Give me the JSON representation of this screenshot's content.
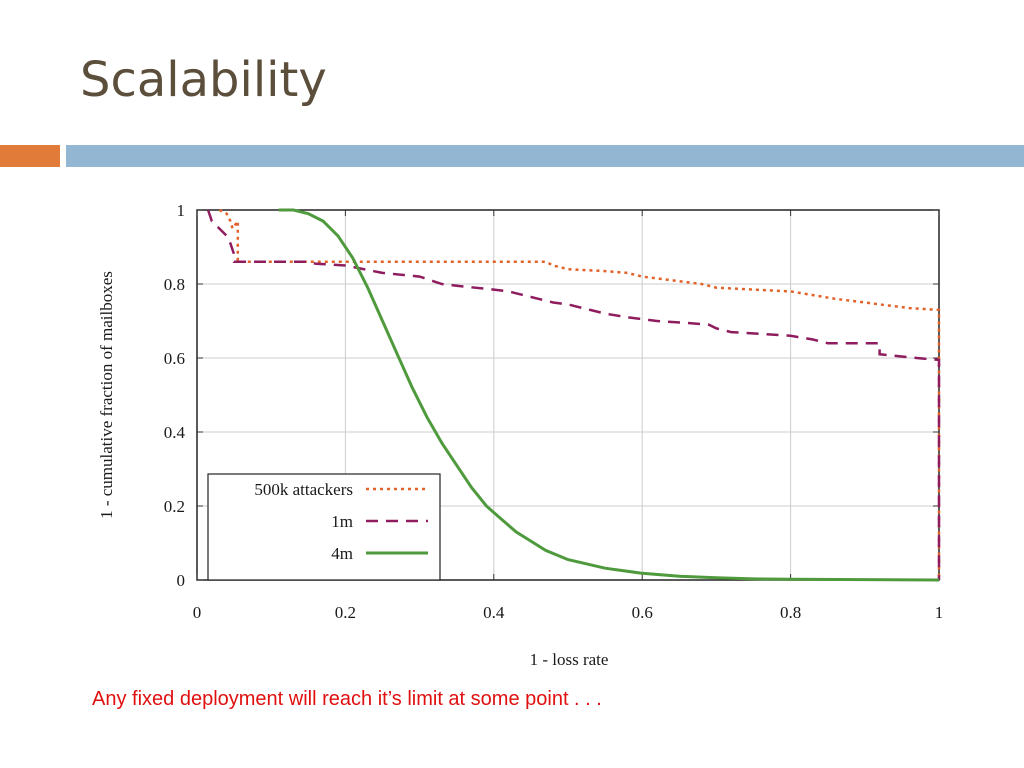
{
  "slide": {
    "title": "Scalability",
    "caption": "Any fixed deployment will reach it’s limit at some point . . .",
    "accent_left": "#e07b39",
    "accent_right": "#93b6d2",
    "title_color": "#5b4e3b",
    "caption_color": "#e01010"
  },
  "chart_data": {
    "type": "line",
    "xlabel": "1 - loss rate",
    "ylabel": "1 - cumulative fraction of mailboxes",
    "xlim": [
      0,
      1
    ],
    "ylim": [
      0,
      1
    ],
    "xticks": [
      "0",
      "0.2",
      "0.4",
      "0.6",
      "0.8",
      "1"
    ],
    "yticks": [
      "0",
      "0.2",
      "0.4",
      "0.6",
      "0.8",
      "1"
    ],
    "grid": true,
    "legend_position": "bottom-left",
    "series": [
      {
        "name": "500k attackers",
        "color": "#e2622a",
        "style": "dotted",
        "points": [
          [
            0.03,
            1.0
          ],
          [
            0.04,
            0.99
          ],
          [
            0.045,
            0.97
          ],
          [
            0.048,
            0.95
          ],
          [
            0.055,
            0.97
          ],
          [
            0.055,
            0.86
          ],
          [
            0.2,
            0.86
          ],
          [
            0.47,
            0.86
          ],
          [
            0.48,
            0.85
          ],
          [
            0.5,
            0.84
          ],
          [
            0.55,
            0.835
          ],
          [
            0.58,
            0.83
          ],
          [
            0.6,
            0.82
          ],
          [
            0.64,
            0.81
          ],
          [
            0.66,
            0.805
          ],
          [
            0.68,
            0.8
          ],
          [
            0.7,
            0.79
          ],
          [
            0.75,
            0.785
          ],
          [
            0.8,
            0.78
          ],
          [
            0.83,
            0.77
          ],
          [
            0.86,
            0.76
          ],
          [
            0.9,
            0.75
          ],
          [
            0.92,
            0.745
          ],
          [
            0.96,
            0.735
          ],
          [
            1.0,
            0.73
          ],
          [
            1.0,
            0.0
          ]
        ]
      },
      {
        "name": "1m",
        "color": "#8e1c5e",
        "style": "dashed",
        "points": [
          [
            0.015,
            1.0
          ],
          [
            0.02,
            0.97
          ],
          [
            0.03,
            0.95
          ],
          [
            0.04,
            0.93
          ],
          [
            0.045,
            0.91
          ],
          [
            0.05,
            0.88
          ],
          [
            0.05,
            0.86
          ],
          [
            0.15,
            0.86
          ],
          [
            0.16,
            0.855
          ],
          [
            0.2,
            0.85
          ],
          [
            0.25,
            0.83
          ],
          [
            0.3,
            0.82
          ],
          [
            0.33,
            0.8
          ],
          [
            0.35,
            0.795
          ],
          [
            0.4,
            0.785
          ],
          [
            0.42,
            0.78
          ],
          [
            0.44,
            0.77
          ],
          [
            0.46,
            0.76
          ],
          [
            0.48,
            0.75
          ],
          [
            0.5,
            0.745
          ],
          [
            0.52,
            0.735
          ],
          [
            0.55,
            0.72
          ],
          [
            0.58,
            0.71
          ],
          [
            0.62,
            0.7
          ],
          [
            0.66,
            0.695
          ],
          [
            0.69,
            0.69
          ],
          [
            0.7,
            0.68
          ],
          [
            0.72,
            0.67
          ],
          [
            0.76,
            0.665
          ],
          [
            0.8,
            0.66
          ],
          [
            0.83,
            0.65
          ],
          [
            0.85,
            0.64
          ],
          [
            0.92,
            0.64
          ],
          [
            0.92,
            0.61
          ],
          [
            0.97,
            0.6
          ],
          [
            1.0,
            0.595
          ],
          [
            1.0,
            0.0
          ]
        ]
      },
      {
        "name": "4m",
        "color": "#4e9a3c",
        "style": "solid",
        "points": [
          [
            0.11,
            1.0
          ],
          [
            0.13,
            1.0
          ],
          [
            0.15,
            0.99
          ],
          [
            0.17,
            0.97
          ],
          [
            0.19,
            0.93
          ],
          [
            0.21,
            0.87
          ],
          [
            0.23,
            0.79
          ],
          [
            0.25,
            0.7
          ],
          [
            0.27,
            0.61
          ],
          [
            0.29,
            0.52
          ],
          [
            0.31,
            0.44
          ],
          [
            0.33,
            0.37
          ],
          [
            0.35,
            0.31
          ],
          [
            0.37,
            0.25
          ],
          [
            0.39,
            0.2
          ],
          [
            0.41,
            0.165
          ],
          [
            0.43,
            0.13
          ],
          [
            0.45,
            0.105
          ],
          [
            0.47,
            0.08
          ],
          [
            0.5,
            0.055
          ],
          [
            0.55,
            0.032
          ],
          [
            0.6,
            0.018
          ],
          [
            0.65,
            0.01
          ],
          [
            0.7,
            0.006
          ],
          [
            0.75,
            0.003
          ],
          [
            0.8,
            0.002
          ],
          [
            0.9,
            0.001
          ],
          [
            1.0,
            0.0
          ]
        ]
      }
    ]
  }
}
